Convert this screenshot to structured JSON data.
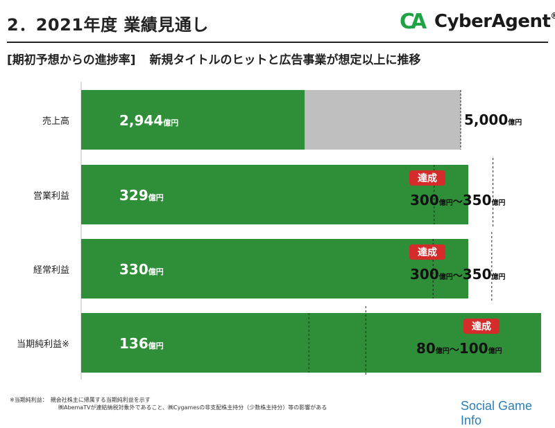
{
  "header": {
    "title": "2．2021年度 業績見通し",
    "brand": "CyberAgent",
    "brand_mark": "CA",
    "brand_reg": "®",
    "subtitle_bracket": "[期初予想からの進捗率]",
    "subtitle_text": "新規タイトルのヒットと広告事業が想定以上に推移"
  },
  "colors": {
    "actual": "#2f8f38",
    "remaining": "#bfbfbf",
    "badge": "#d42b2b"
  },
  "chart_data": {
    "type": "bar",
    "orientation": "horizontal",
    "unit": "億円",
    "categories": [
      "売上高",
      "営業利益",
      "経常利益",
      "当期純利益※"
    ],
    "actual_values": [
      2944,
      329,
      330,
      136
    ],
    "actual_labels": [
      "2,944",
      "329",
      "330",
      "136"
    ],
    "targets": [
      {
        "low": 5000,
        "high": null,
        "label_low": "5,000",
        "label_high": "",
        "achieved": false
      },
      {
        "low": 300,
        "high": 350,
        "label_low": "300",
        "label_high": "350",
        "achieved": true
      },
      {
        "low": 300,
        "high": 350,
        "label_low": "300",
        "label_high": "350",
        "achieved": true
      },
      {
        "low": 80,
        "high": 100,
        "label_low": "80",
        "label_high": "100",
        "achieved": true
      }
    ],
    "badge_text": "達成",
    "tilde": "～"
  },
  "footnote": {
    "line1": "※当期純利益：　親会社株主に帰属する当期純利益を示す",
    "line2": "㈱AbemaTVが連結納税対象外であること、㈱Cygamesの非支配株主持分（少数株主持分）等の影響がある"
  },
  "watermark": {
    "text": "Social Game Info"
  }
}
